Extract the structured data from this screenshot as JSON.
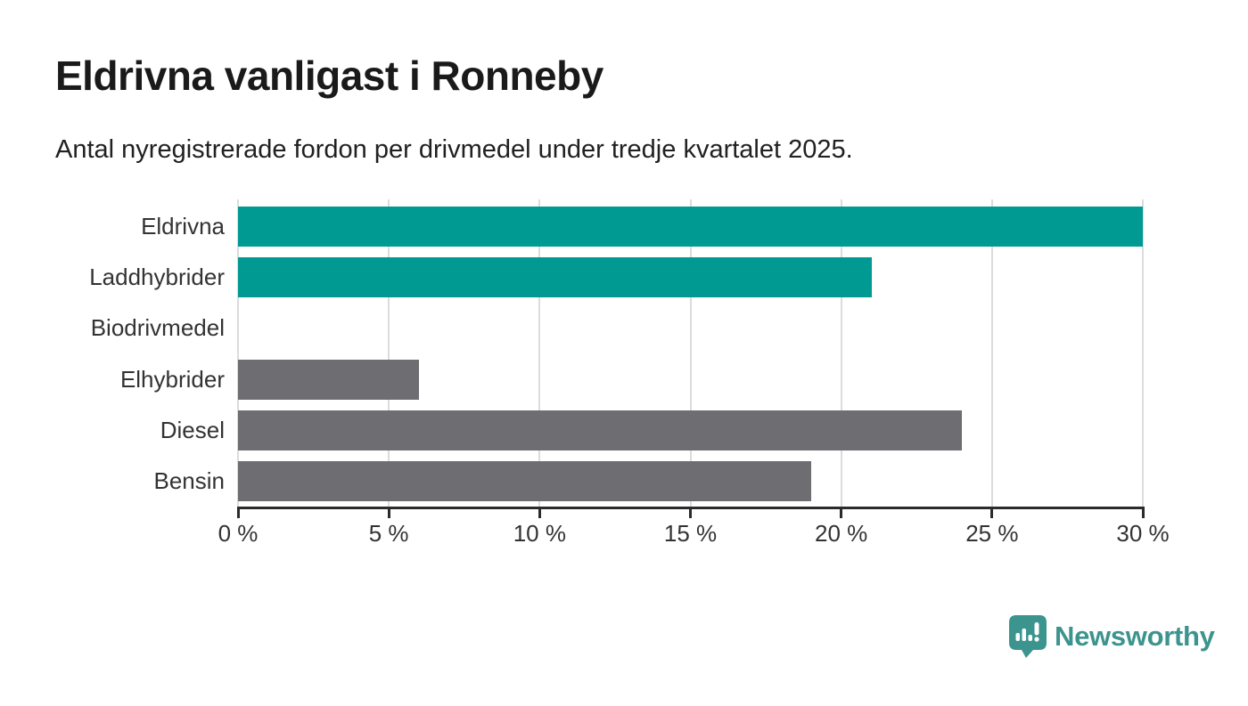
{
  "header": {
    "title": "Eldrivna vanligast i Ronneby",
    "subtitle": "Antal nyregistrerade fordon per drivmedel under tredje kvartalet 2025."
  },
  "chart_data": {
    "type": "bar",
    "orientation": "horizontal",
    "title": "Eldrivna vanligast i Ronneby",
    "subtitle": "Antal nyregistrerade fordon per drivmedel under tredje kvartalet 2025.",
    "categories": [
      "Eldrivna",
      "Laddhybrider",
      "Biodrivmedel",
      "Elhybrider",
      "Diesel",
      "Bensin"
    ],
    "values": [
      30,
      21,
      0,
      6,
      24,
      19
    ],
    "unit": "%",
    "xlim": [
      0,
      30
    ],
    "x_ticks": [
      0,
      5,
      10,
      15,
      20,
      25,
      30
    ],
    "x_tick_labels": [
      "0 %",
      "5 %",
      "10 %",
      "15 %",
      "20 %",
      "25 %",
      "30 %"
    ],
    "grid": true,
    "legend": "none",
    "colors": {
      "highlight": "#009A93",
      "default": "#6D6D72",
      "gridline": "#dcdcdc",
      "axis": "#2b2b2b"
    },
    "bar_colors": [
      "#009A93",
      "#009A93",
      "#6D6D72",
      "#6D6D72",
      "#6D6D72",
      "#6D6D72"
    ]
  },
  "footer": {
    "brand_label": "Newsworthy",
    "brand_color": "#3C948E",
    "logo_icon": "newsworthy-speech-bubble-chart-icon"
  }
}
